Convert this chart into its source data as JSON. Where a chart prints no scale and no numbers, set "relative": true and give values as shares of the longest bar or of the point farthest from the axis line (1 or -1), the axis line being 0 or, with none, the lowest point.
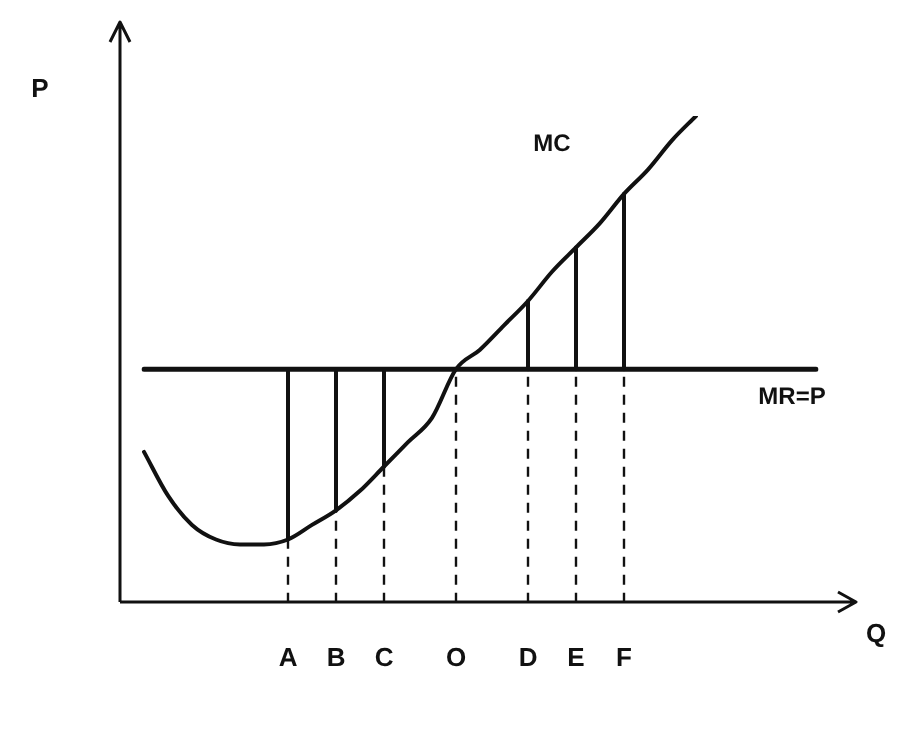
{
  "chart_data": {
    "type": "line",
    "relative": true,
    "xlabel": "Q",
    "ylabel": "P",
    "legend": false,
    "categories": [
      null,
      null,
      null,
      null,
      null,
      null,
      "A",
      null,
      "B",
      null,
      "C",
      null,
      null,
      "O",
      null,
      null,
      "D",
      null,
      "E",
      null,
      "F",
      null,
      null,
      null,
      null,
      null,
      null,
      null,
      null
    ],
    "series": [
      {
        "name": "MC",
        "color": "#111111",
        "values": [
          0.31,
          0.22,
          0.16,
          0.13,
          0.12,
          0.12,
          0.13,
          0.16,
          0.19,
          0.23,
          0.28,
          0.33,
          0.38,
          0.48,
          0.52,
          0.57,
          0.62,
          0.68,
          0.73,
          0.78,
          0.84,
          0.89,
          0.95,
          1,
          null,
          null,
          null,
          null,
          null
        ]
      },
      {
        "name": "MR=P",
        "color": "#111111",
        "values": [
          0.48,
          0.48,
          0.48,
          0.48,
          0.48,
          0.48,
          0.48,
          0.48,
          0.48,
          0.48,
          0.48,
          0.48,
          0.48,
          0.48,
          0.48,
          0.48,
          0.48,
          0.48,
          0.48,
          0.48,
          0.48,
          0.48,
          0.48,
          0.48,
          0.48,
          0.48,
          0.48,
          0.48,
          0.48
        ]
      },
      {
        "color": "#111111",
        "x": [
          "A",
          "A"
        ],
        "values": [
          0.48,
          0.13
        ]
      },
      {
        "color": "#111111",
        "x": [
          "A",
          "A"
        ],
        "values": [
          0,
          0.13
        ],
        "line_style": "dashed"
      },
      {
        "color": "#111111",
        "x": [
          "B",
          "B"
        ],
        "values": [
          0.48,
          0.19
        ]
      },
      {
        "color": "#111111",
        "x": [
          "B",
          "B"
        ],
        "values": [
          0,
          0.19
        ],
        "line_style": "dashed"
      },
      {
        "color": "#111111",
        "x": [
          "C",
          "C"
        ],
        "values": [
          0.48,
          0.28
        ]
      },
      {
        "color": "#111111",
        "x": [
          "C",
          "C"
        ],
        "values": [
          0,
          0.28
        ],
        "line_style": "dashed"
      },
      {
        "color": "#111111",
        "x": [
          "O",
          "O"
        ],
        "values": [
          0,
          0.48
        ],
        "line_style": "dashed"
      },
      {
        "color": "#111111",
        "x": [
          "D",
          "D"
        ],
        "values": [
          0.48,
          0.62
        ]
      },
      {
        "color": "#111111",
        "x": [
          "D",
          "D"
        ],
        "values": [
          0,
          0.48
        ],
        "line_style": "dashed"
      },
      {
        "color": "#111111",
        "x": [
          "E",
          "E"
        ],
        "values": [
          0.48,
          0.73
        ]
      },
      {
        "color": "#111111",
        "x": [
          "E",
          "E"
        ],
        "values": [
          0,
          0.48
        ],
        "line_style": "dashed"
      },
      {
        "color": "#111111",
        "x": [
          "F",
          "F"
        ],
        "values": [
          0.48,
          0.84
        ]
      },
      {
        "color": "#111111",
        "x": [
          "F",
          "F"
        ],
        "values": [
          0,
          0.48
        ],
        "line_style": "dashed"
      }
    ]
  }
}
